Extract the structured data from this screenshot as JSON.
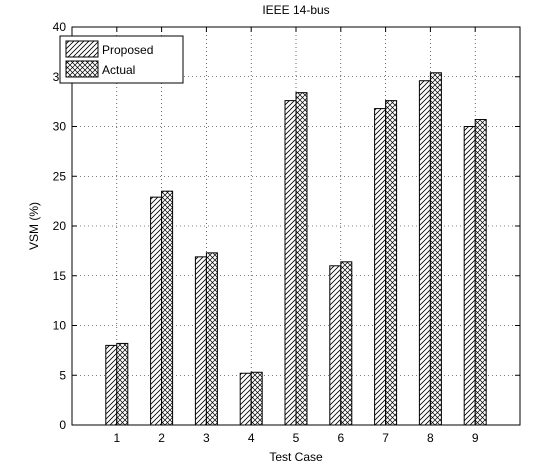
{
  "chart_data": {
    "type": "bar",
    "title": "IEEE 14-bus",
    "xlabel": "Test Case",
    "ylabel": "VSM (%)",
    "categories": [
      "1",
      "2",
      "3",
      "4",
      "5",
      "6",
      "7",
      "8",
      "9"
    ],
    "ylim": [
      0,
      40
    ],
    "yticks": [
      0,
      5,
      10,
      15,
      20,
      25,
      30,
      35,
      40
    ],
    "grid": true,
    "legend_position": "top-left",
    "series": [
      {
        "name": "Proposed",
        "pattern": "diagonal-hatch",
        "values": [
          8.0,
          22.9,
          16.9,
          5.2,
          32.6,
          16.0,
          31.8,
          34.6,
          30.0
        ]
      },
      {
        "name": "Actual",
        "pattern": "cross-hatch",
        "values": [
          8.2,
          23.5,
          17.3,
          5.3,
          33.4,
          16.4,
          32.6,
          35.4,
          30.7
        ]
      }
    ]
  }
}
